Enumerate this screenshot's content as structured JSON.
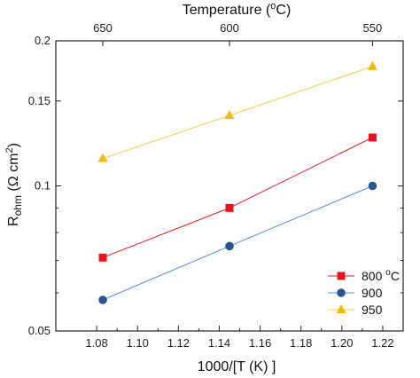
{
  "chart_data": {
    "type": "line",
    "xlabel": "1000/[T (K) ]",
    "ylabel_main": "R",
    "ylabel_sub": "ohm",
    "ylabel_unit": " (Ω cm",
    "ylabel_unit_sup": "2",
    "ylabel_close": ")",
    "top_label": "Temperature (",
    "top_label_sup": "o",
    "top_label_end": "C)",
    "xlim": [
      1.06,
      1.23
    ],
    "ylim": [
      0.05,
      0.2
    ],
    "yscale": "log",
    "x_ticks": [
      1.08,
      1.1,
      1.12,
      1.14,
      1.16,
      1.18,
      1.2,
      1.22
    ],
    "x_tick_labels": [
      "1.08",
      "1.10",
      "1.12",
      "1.14",
      "1.16",
      "1.18",
      "1.20",
      "1.22"
    ],
    "y_ticks": [
      0.05,
      0.1,
      0.15,
      0.2
    ],
    "y_tick_labels": [
      "0.05",
      "0.1",
      "0.15",
      "0.2"
    ],
    "top_ticks": [
      1.083,
      1.145,
      1.215
    ],
    "top_tick_labels": [
      "650",
      "600",
      "550"
    ],
    "x": [
      1.083,
      1.145,
      1.215
    ],
    "series": [
      {
        "name": "800 °C",
        "legend_main": "800 ",
        "legend_sup": "o",
        "legend_end": "C",
        "marker": "square",
        "color": "#e8141c",
        "values": [
          0.071,
          0.09,
          0.126
        ]
      },
      {
        "name": "900",
        "legend_main": "900",
        "legend_sup": "",
        "legend_end": "",
        "marker": "circle",
        "color": "#2b5592",
        "line_color": "#5b8fd6",
        "values": [
          0.058,
          0.075,
          0.1
        ]
      },
      {
        "name": "950",
        "legend_main": "950",
        "legend_sup": "",
        "legend_end": "",
        "marker": "triangle",
        "color": "#f2bb0c",
        "line_color": "#f5c842",
        "values": [
          0.114,
          0.14,
          0.177
        ]
      }
    ],
    "grid": false,
    "legend_position": "bottom-right"
  }
}
